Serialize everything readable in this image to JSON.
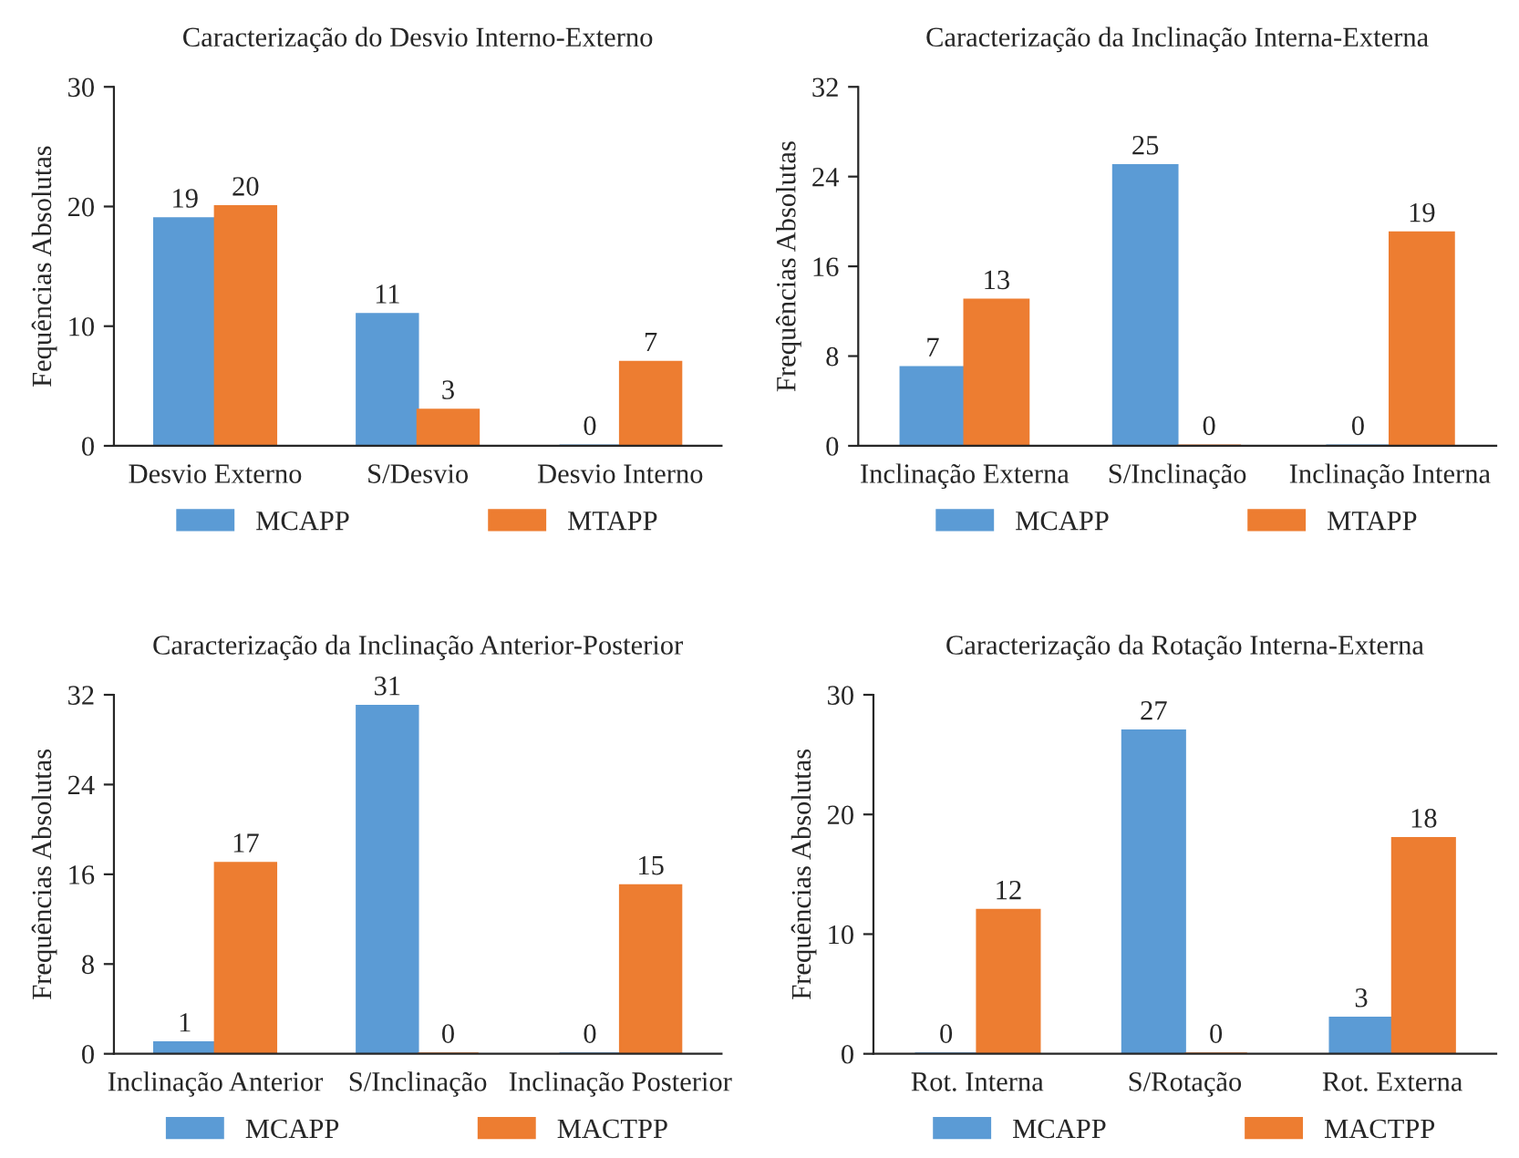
{
  "chart_data": [
    {
      "type": "bar",
      "title": "Caracterização do Desvio Interno-Externo",
      "ylabel": "Fequências Absolutas",
      "categories": [
        "Desvio Externo",
        "S/Desvio",
        "Desvio Interno"
      ],
      "series": [
        {
          "name": "MCAPP",
          "color": "#5b9bd5",
          "values": [
            19,
            11,
            0
          ]
        },
        {
          "name": "MTAPP",
          "color": "#ed7d31",
          "values": [
            20,
            3,
            7
          ]
        }
      ],
      "ylim": [
        0,
        30
      ],
      "yticks": [
        0,
        10,
        20,
        30
      ],
      "data_labels": true,
      "legend": "bottom",
      "grid": false
    },
    {
      "type": "bar",
      "title": "Caracterização da Inclinação Interna-Externa",
      "ylabel": "Frequências Absolutas",
      "categories": [
        "Inclinação Externa",
        "S/Inclinação",
        "Inclinação Interna"
      ],
      "series": [
        {
          "name": "MCAPP",
          "color": "#5b9bd5",
          "values": [
            7,
            25,
            0
          ]
        },
        {
          "name": "MTAPP",
          "color": "#ed7d31",
          "values": [
            13,
            0,
            19
          ]
        }
      ],
      "ylim": [
        0,
        32
      ],
      "yticks": [
        0,
        8,
        16,
        24,
        32
      ],
      "data_labels": true,
      "legend": "bottom",
      "grid": false
    },
    {
      "type": "bar",
      "title": "Caracterização da Inclinação Anterior-Posterior",
      "ylabel": "Frequências Absolutas",
      "categories": [
        "Inclinação Anterior",
        "S/Inclinação",
        "Inclinação Posterior"
      ],
      "series": [
        {
          "name": "MCAPP",
          "color": "#5b9bd5",
          "values": [
            1,
            31,
            0
          ]
        },
        {
          "name": "MACTPP",
          "color": "#ed7d31",
          "values": [
            17,
            0,
            15
          ]
        }
      ],
      "ylim": [
        0,
        32
      ],
      "yticks": [
        0,
        8,
        16,
        24,
        32
      ],
      "data_labels": true,
      "legend": "bottom",
      "grid": false
    },
    {
      "type": "bar",
      "title": "Caracterização da Rotação Interna-Externa",
      "ylabel": "Frequências Absolutas",
      "categories": [
        "Rot. Interna",
        "S/Rotação",
        "Rot. Externa"
      ],
      "series": [
        {
          "name": "MCAPP",
          "color": "#5b9bd5",
          "values": [
            0,
            27,
            3
          ]
        },
        {
          "name": "MACTPP",
          "color": "#ed7d31",
          "values": [
            12,
            0,
            18
          ]
        }
      ],
      "ylim": [
        0,
        30
      ],
      "yticks": [
        0,
        10,
        20,
        30
      ],
      "data_labels": true,
      "legend": "bottom",
      "grid": false
    }
  ]
}
